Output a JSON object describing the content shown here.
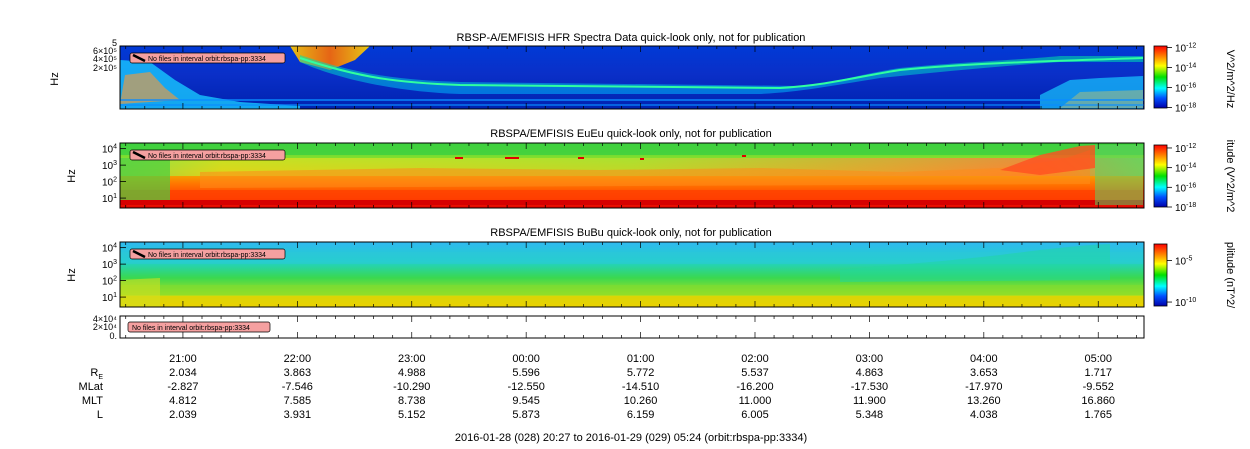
{
  "chart_data": [
    {
      "type": "heatmap",
      "title": "RBSP-A/EMFISIS  HFR Spectra Data quick-look only, not for publication",
      "ylabel": "Hz",
      "y_ticks": [
        "6×10⁵",
        "4×10⁵",
        "2×10⁵"
      ],
      "y_tick_values": [
        600000,
        400000,
        200000
      ],
      "y_top_tick": "5",
      "colorbar_label": "V^2/m^2/Hz",
      "colorbar_ticks": [
        {
          "base": "10",
          "exp": "-12",
          "value": 1e-12
        },
        {
          "base": "10",
          "exp": "-14",
          "value": 1e-14
        },
        {
          "base": "10",
          "exp": "-16",
          "value": 1e-16
        },
        {
          "base": "10",
          "exp": "-18",
          "value": 1e-18
        }
      ],
      "notice": "No files in interval orbit:rbspa-pp:3334"
    },
    {
      "type": "heatmap",
      "title": "RBSPA/EMFISIS  EuEu quick-look only, not for publication",
      "ylabel": "Hz",
      "y_ticks": [
        {
          "base": "10",
          "exp": "4",
          "value": 10000
        },
        {
          "base": "10",
          "exp": "3",
          "value": 1000
        },
        {
          "base": "10",
          "exp": "2",
          "value": 100
        },
        {
          "base": "10",
          "exp": "1",
          "value": 10
        }
      ],
      "colorbar_label": "itude (V^2/m^2",
      "colorbar_ticks": [
        {
          "base": "10",
          "exp": "-12",
          "value": 1e-12
        },
        {
          "base": "10",
          "exp": "-14",
          "value": 1e-14
        },
        {
          "base": "10",
          "exp": "-16",
          "value": 1e-16
        },
        {
          "base": "10",
          "exp": "-18",
          "value": 1e-18
        }
      ],
      "notice": "No files in interval orbit:rbspa-pp:3334"
    },
    {
      "type": "heatmap",
      "title": "RBSPA/EMFISIS  BuBu quick-look only, not for publication",
      "ylabel": "Hz",
      "y_ticks": [
        {
          "base": "10",
          "exp": "4",
          "value": 10000
        },
        {
          "base": "10",
          "exp": "3",
          "value": 1000
        },
        {
          "base": "10",
          "exp": "2",
          "value": 100
        },
        {
          "base": "10",
          "exp": "1",
          "value": 10
        }
      ],
      "colorbar_label": "plitude (nT^2/",
      "colorbar_ticks": [
        {
          "base": "10",
          "exp": "-5",
          "value": 1e-05
        },
        {
          "base": "10",
          "exp": "-10",
          "value": 1e-10
        }
      ],
      "notice": "No files in interval orbit:rbspa-pp:3334"
    },
    {
      "type": "line",
      "title": "",
      "y_ticks": [
        "4×10⁴",
        "2×10⁴",
        "0."
      ],
      "y_tick_values": [
        40000,
        20000,
        0
      ],
      "notice": "No files in interval orbit:rbspa-pp:3334"
    }
  ],
  "x_axis": {
    "time_range_start": "2016-01-28 20:27",
    "time_range_end": "2016-01-29 05:24",
    "tick_labels": [
      "21:00",
      "22:00",
      "23:00",
      "00:00",
      "01:00",
      "02:00",
      "03:00",
      "04:00",
      "05:00"
    ],
    "ephemeris": [
      {
        "label": "R",
        "subscript": "E",
        "values": [
          "2.034",
          "3.863",
          "4.988",
          "5.596",
          "5.772",
          "5.537",
          "4.863",
          "3.653",
          "1.717"
        ]
      },
      {
        "label": "MLat",
        "subscript": "",
        "values": [
          "-2.827",
          "-7.546",
          "-10.290",
          "-12.550",
          "-14.510",
          "-16.200",
          "-17.530",
          "-17.970",
          "-9.552"
        ]
      },
      {
        "label": "MLT",
        "subscript": "",
        "values": [
          "4.812",
          "7.585",
          "8.738",
          "9.545",
          "10.260",
          "11.000",
          "11.900",
          "13.260",
          "16.860"
        ]
      },
      {
        "label": "L",
        "subscript": "",
        "values": [
          "2.039",
          "3.931",
          "5.152",
          "5.873",
          "6.159",
          "6.005",
          "5.348",
          "4.038",
          "1.765"
        ]
      }
    ],
    "footer": "2016-01-28 (028) 20:27 to 2016-01-29 (029) 05:24 (orbit:rbspa-pp:3334)"
  }
}
